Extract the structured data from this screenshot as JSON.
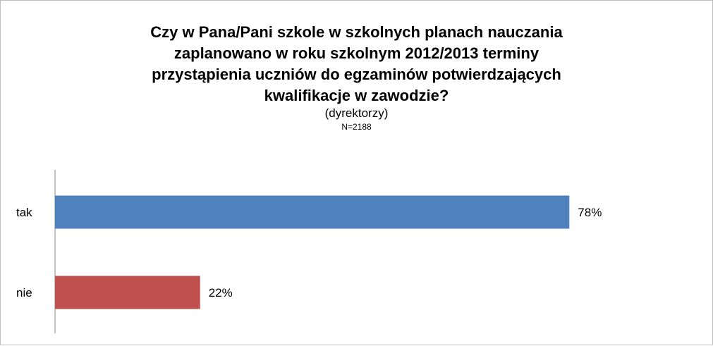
{
  "chart_data": {
    "type": "bar",
    "orientation": "horizontal",
    "title": "Czy w Pana/Pani szkole w szkolnych planach nauczania\nzaplanowano w roku szkolnym 2012/2013 terminy\nprzystąpienia uczniów do egzaminów potwierdzających\nkwalifikacje w zawodzie?",
    "subtitle": "(dyrektorzy)",
    "sample_size": "N=2188",
    "categories": [
      "tak",
      "nie"
    ],
    "values": [
      78,
      22
    ],
    "value_labels": [
      "78%",
      "22%"
    ],
    "bar_colors": [
      "#4F81BD",
      "#C0504D"
    ],
    "xlim": [
      0,
      100
    ],
    "grid": false,
    "legend": "none"
  }
}
